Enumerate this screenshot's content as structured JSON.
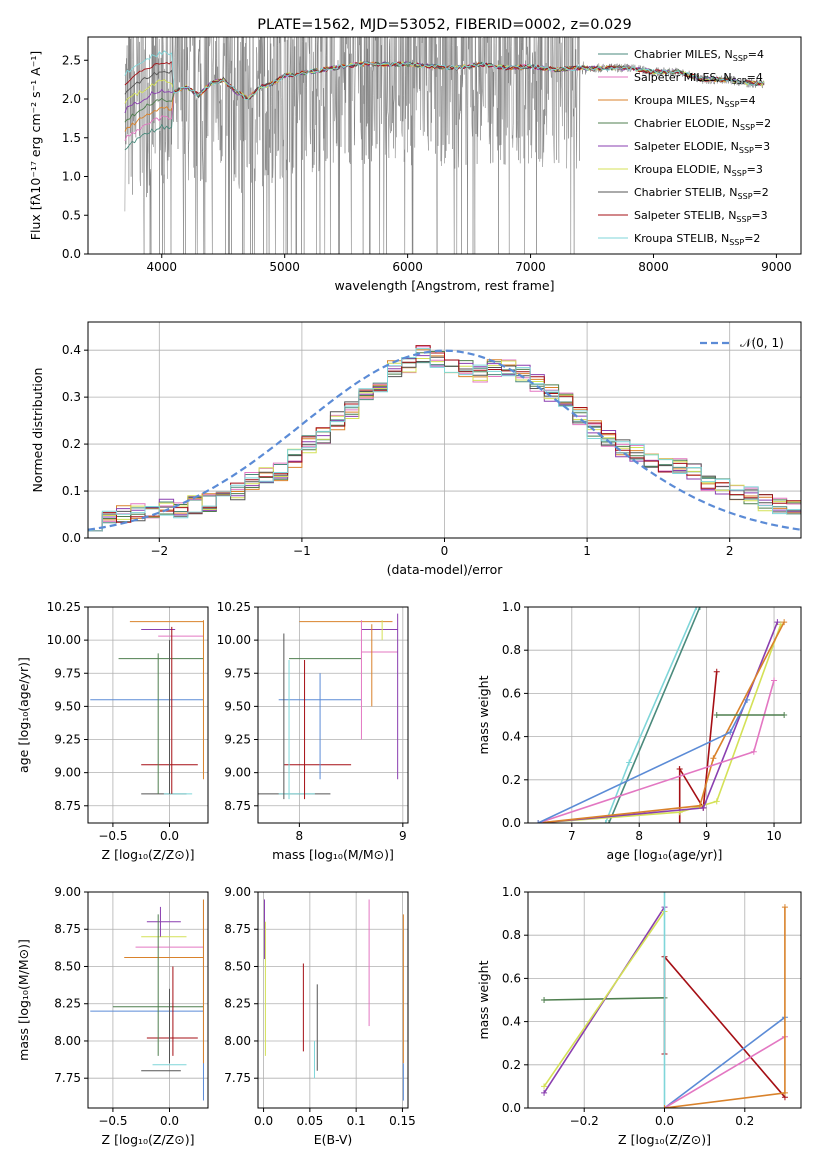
{
  "colors": {
    "Chabrier MILES": "#4a8a7c",
    "Salpeter MILES": "#e377c2",
    "Kroupa MILES": "#d9822b",
    "Chabrier ELODIE": "#4f7f4f",
    "Salpeter ELODIE": "#8a3fb0",
    "Kroupa ELODIE": "#d4e157",
    "Chabrier STELIB": "#555555",
    "Salpeter STELIB": "#a50f15",
    "Kroupa STELIB": "#7fd6d9",
    "blue": "#5b8bd6",
    "obs": "#808080"
  },
  "chart_data": [
    {
      "type": "line",
      "title": "PLATE=1562, MJD=53052, FIBERID=0002, z=0.029",
      "xlabel": "wavelength [Angstrom, rest frame]",
      "ylabel": "Flux [fλ10⁻¹⁷ erg cm⁻² s⁻¹ A⁻¹]",
      "xlim": [
        3400,
        9200
      ],
      "ylim": [
        0,
        2.8
      ],
      "xticks": [
        4000,
        5000,
        6000,
        7000,
        8000,
        9000
      ],
      "yticks": [
        0.0,
        0.5,
        1.0,
        1.5,
        2.0,
        2.5
      ],
      "legend": "top-right",
      "legend_entries": [
        {
          "label": "Chabrier MILES, N",
          "sub": "SSP",
          "val": "=4",
          "key": "Chabrier MILES"
        },
        {
          "label": "Salpeter MILES, N",
          "sub": "SSP",
          "val": "=4",
          "key": "Salpeter MILES"
        },
        {
          "label": "Kroupa MILES, N",
          "sub": "SSP",
          "val": "=4",
          "key": "Kroupa MILES"
        },
        {
          "label": "Chabrier ELODIE, N",
          "sub": "SSP",
          "val": "=2",
          "key": "Chabrier ELODIE"
        },
        {
          "label": "Salpeter ELODIE, N",
          "sub": "SSP",
          "val": "=3",
          "key": "Salpeter ELODIE"
        },
        {
          "label": "Kroupa ELODIE, N",
          "sub": "SSP",
          "val": "=3",
          "key": "Kroupa ELODIE"
        },
        {
          "label": "Chabrier STELIB, N",
          "sub": "SSP",
          "val": "=2",
          "key": "Chabrier STELIB"
        },
        {
          "label": "Salpeter STELIB, N",
          "sub": "SSP",
          "val": "=3",
          "key": "Salpeter STELIB"
        },
        {
          "label": "Kroupa STELIB, N",
          "sub": "SSP",
          "val": "=2",
          "key": "Kroupa STELIB"
        }
      ],
      "model_continuum": {
        "x": [
          3700,
          3800,
          3900,
          4000,
          4100,
          4200,
          4300,
          4400,
          4500,
          4600,
          4700,
          4800,
          4900,
          5000,
          5200,
          5400,
          5600,
          5800,
          6000,
          6200,
          6400,
          6600,
          6800,
          7000,
          7200,
          7400,
          7600,
          7800,
          8000,
          8200,
          8400,
          8600,
          8800,
          8900
        ],
        "y": [
          1.85,
          1.95,
          2.05,
          2.12,
          2.1,
          2.15,
          2.05,
          2.2,
          2.25,
          2.1,
          2.0,
          2.15,
          2.2,
          2.3,
          2.35,
          2.4,
          2.45,
          2.45,
          2.45,
          2.42,
          2.4,
          2.45,
          2.4,
          2.42,
          2.38,
          2.4,
          2.4,
          2.4,
          2.35,
          2.35,
          2.25,
          2.25,
          2.2,
          2.2
        ]
      }
    },
    {
      "type": "line",
      "xlabel": "(data-model)/error",
      "ylabel": "Normed distribution",
      "xlim": [
        -2.5,
        2.5
      ],
      "ylim": [
        0,
        0.46
      ],
      "xticks": [
        -2,
        -1,
        0,
        1,
        2
      ],
      "yticks": [
        0.0,
        0.1,
        0.2,
        0.3,
        0.4
      ],
      "legend": "top-right",
      "legend_label": "𝒩(0, 1)",
      "bin_width": 0.1,
      "bins_start": -2.5,
      "hist_base": [
        0.035,
        0.04,
        0.05,
        0.055,
        0.06,
        0.065,
        0.06,
        0.07,
        0.075,
        0.08,
        0.1,
        0.12,
        0.13,
        0.14,
        0.17,
        0.2,
        0.22,
        0.25,
        0.27,
        0.3,
        0.33,
        0.36,
        0.37,
        0.39,
        0.38,
        0.37,
        0.36,
        0.35,
        0.36,
        0.36,
        0.35,
        0.33,
        0.31,
        0.29,
        0.26,
        0.23,
        0.21,
        0.19,
        0.18,
        0.17,
        0.16,
        0.15,
        0.14,
        0.12,
        0.11,
        0.1,
        0.09,
        0.075,
        0.065,
        0.06
      ]
    },
    {
      "type": "scatter",
      "xlabel": "Z [log₁₀(Z/Z⊙)]",
      "ylabel": "age  [log₁₀(age/yr)]",
      "xlim": [
        -0.72,
        0.34
      ],
      "ylim": [
        8.62,
        10.25
      ],
      "xticks": [
        -0.5,
        0.0
      ],
      "yticks": [
        8.75,
        9.0,
        9.25,
        9.5,
        9.75,
        10.0,
        10.25
      ],
      "points": [
        {
          "key": "Kroupa MILES",
          "x": [
            -0.35,
            0.3
          ],
          "y": [
            10.14,
            10.14
          ]
        },
        {
          "key": "Salpeter ELODIE",
          "x": [
            -0.25,
            0.05
          ],
          "y": [
            10.08,
            10.08
          ]
        },
        {
          "key": "Salpeter MILES",
          "x": [
            -0.1,
            0.3
          ],
          "y": [
            10.03,
            10.03
          ]
        },
        {
          "key": "Chabrier ELODIE",
          "x": [
            -0.45,
            0.3
          ],
          "y": [
            9.86,
            9.86
          ]
        },
        {
          "key": "blue",
          "x": [
            -0.7,
            0.3
          ],
          "y": [
            9.55,
            9.55
          ]
        },
        {
          "key": "Salpeter STELIB",
          "x": [
            -0.25,
            0.25
          ],
          "y": [
            9.06,
            9.06
          ]
        },
        {
          "key": "Chabrier STELIB",
          "x": [
            -0.25,
            0.15
          ],
          "y": [
            8.84,
            8.84
          ]
        },
        {
          "key": "Kroupa STELIB",
          "x": [
            -0.05,
            0.2
          ],
          "y": [
            8.84,
            8.84
          ]
        }
      ]
    },
    {
      "type": "scatter",
      "xlabel": "mass [log₁₀(M/M⊙)]",
      "ylabel": "",
      "xlim": [
        7.6,
        9.05
      ],
      "ylim": [
        8.62,
        10.25
      ],
      "xticks": [
        8,
        9
      ],
      "yticks": [
        8.75,
        9.0,
        9.25,
        9.5,
        9.75,
        10.0,
        10.25
      ]
    },
    {
      "type": "line",
      "xlabel": "age  [log₁₀(age/yr)]",
      "ylabel": "mass weight",
      "xlim": [
        6.35,
        10.4
      ],
      "ylim": [
        0,
        1.0
      ],
      "xticks": [
        7,
        8,
        9,
        10
      ],
      "yticks": [
        0.0,
        0.2,
        0.4,
        0.6,
        0.8,
        1.0
      ],
      "series": [
        {
          "key": "Kroupa STELIB",
          "x": [
            7.5,
            7.85,
            8.85
          ],
          "y": [
            0.0,
            0.28,
            1.0
          ]
        },
        {
          "key": "Chabrier MILES",
          "x": [
            7.55,
            8.9
          ],
          "y": [
            0.0,
            1.0
          ]
        },
        {
          "key": "Salpeter STELIB",
          "x": [
            8.6,
            8.6,
            8.95,
            9.15
          ],
          "y": [
            0.0,
            0.25,
            0.07,
            0.7
          ]
        },
        {
          "key": "Kroupa ELODIE",
          "x": [
            6.5,
            8.6,
            9.15,
            10.1
          ],
          "y": [
            0.0,
            0.05,
            0.1,
            0.92
          ]
        },
        {
          "key": "Salpeter ELODIE",
          "x": [
            6.5,
            8.95,
            10.05
          ],
          "y": [
            0.0,
            0.07,
            0.93
          ]
        },
        {
          "key": "Kroupa MILES",
          "x": [
            6.5,
            8.9,
            9.1,
            10.15
          ],
          "y": [
            0.0,
            0.08,
            0.3,
            0.93
          ]
        },
        {
          "key": "Salpeter MILES",
          "x": [
            6.5,
            9.7,
            10.0
          ],
          "y": [
            0.0,
            0.33,
            0.66
          ]
        },
        {
          "key": "blue",
          "x": [
            6.5,
            9.35,
            9.6
          ],
          "y": [
            0.0,
            0.42,
            0.57
          ]
        },
        {
          "key": "Chabrier ELODIE",
          "x": [
            9.15,
            10.15
          ],
          "y": [
            0.5,
            0.5
          ]
        }
      ]
    },
    {
      "type": "scatter",
      "xlabel": "Z [log₁₀(Z/Z⊙)]",
      "ylabel": "mass [log₁₀(M/M⊙)]",
      "xlim": [
        -0.72,
        0.34
      ],
      "ylim": [
        7.55,
        9.0
      ],
      "xticks": [
        -0.5,
        0.0
      ],
      "yticks": [
        7.75,
        8.0,
        8.25,
        8.5,
        8.75,
        9.0
      ],
      "points": [
        {
          "key": "Salpeter ELODIE",
          "x": [
            -0.2,
            0.1
          ],
          "y": [
            8.8,
            8.8
          ]
        },
        {
          "key": "Kroupa ELODIE",
          "x": [
            -0.25,
            0.15
          ],
          "y": [
            8.7,
            8.7
          ]
        },
        {
          "key": "Salpeter MILES",
          "x": [
            -0.3,
            0.3
          ],
          "y": [
            8.63,
            8.63
          ]
        },
        {
          "key": "Kroupa MILES",
          "x": [
            -0.4,
            0.3
          ],
          "y": [
            8.56,
            8.56
          ]
        },
        {
          "key": "Chabrier ELODIE",
          "x": [
            -0.5,
            0.3
          ],
          "y": [
            8.23,
            8.23
          ]
        },
        {
          "key": "blue",
          "x": [
            -0.7,
            0.3
          ],
          "y": [
            8.2,
            8.2
          ]
        },
        {
          "key": "Salpeter STELIB",
          "x": [
            -0.2,
            0.25
          ],
          "y": [
            8.02,
            8.02
          ]
        },
        {
          "key": "Kroupa STELIB",
          "x": [
            -0.15,
            0.15
          ],
          "y": [
            7.84,
            7.84
          ]
        },
        {
          "key": "Chabrier STELIB",
          "x": [
            -0.25,
            0.1
          ],
          "y": [
            7.8,
            7.8
          ]
        }
      ]
    },
    {
      "type": "scatter",
      "xlabel": "E(B-V)",
      "ylabel": "",
      "xlim": [
        -0.006,
        0.156
      ],
      "ylim": [
        7.55,
        9.0
      ],
      "xticks": [
        0.0,
        0.05,
        0.1,
        0.15
      ],
      "yticks": [
        7.75,
        8.0,
        8.25,
        8.5,
        8.75,
        9.0
      ]
    },
    {
      "type": "line",
      "xlabel": "Z [log₁₀(Z/Z⊙)]",
      "ylabel": "mass weight",
      "xlim": [
        -0.34,
        0.34
      ],
      "ylim": [
        0,
        1.0
      ],
      "xticks": [
        -0.2,
        0.0,
        0.2
      ],
      "yticks": [
        0.0,
        0.2,
        0.4,
        0.6,
        0.8,
        1.0
      ],
      "series": [
        {
          "key": "Chabrier ELODIE",
          "x": [
            -0.3,
            0.0
          ],
          "y": [
            0.5,
            0.51
          ]
        },
        {
          "key": "Salpeter ELODIE",
          "x": [
            -0.3,
            0.0
          ],
          "y": [
            0.07,
            0.93
          ]
        },
        {
          "key": "Kroupa ELODIE",
          "x": [
            -0.3,
            0.0
          ],
          "y": [
            0.1,
            0.91
          ]
        },
        {
          "key": "Salpeter STELIB",
          "x": [
            0.0,
            0.0,
            0.3
          ],
          "y": [
            0.25,
            0.7,
            0.05
          ]
        },
        {
          "key": "Kroupa STELIB",
          "x": [
            0.0,
            0.0
          ],
          "y": [
            0.0,
            1.0
          ]
        },
        {
          "key": "blue",
          "x": [
            0.0,
            0.3
          ],
          "y": [
            0.0,
            0.42
          ]
        },
        {
          "key": "Salpeter MILES",
          "x": [
            0.0,
            0.3
          ],
          "y": [
            0.0,
            0.33
          ]
        },
        {
          "key": "Kroupa MILES",
          "x": [
            0.0,
            0.3,
            0.3
          ],
          "y": [
            0.0,
            0.07,
            0.93
          ]
        }
      ]
    }
  ]
}
